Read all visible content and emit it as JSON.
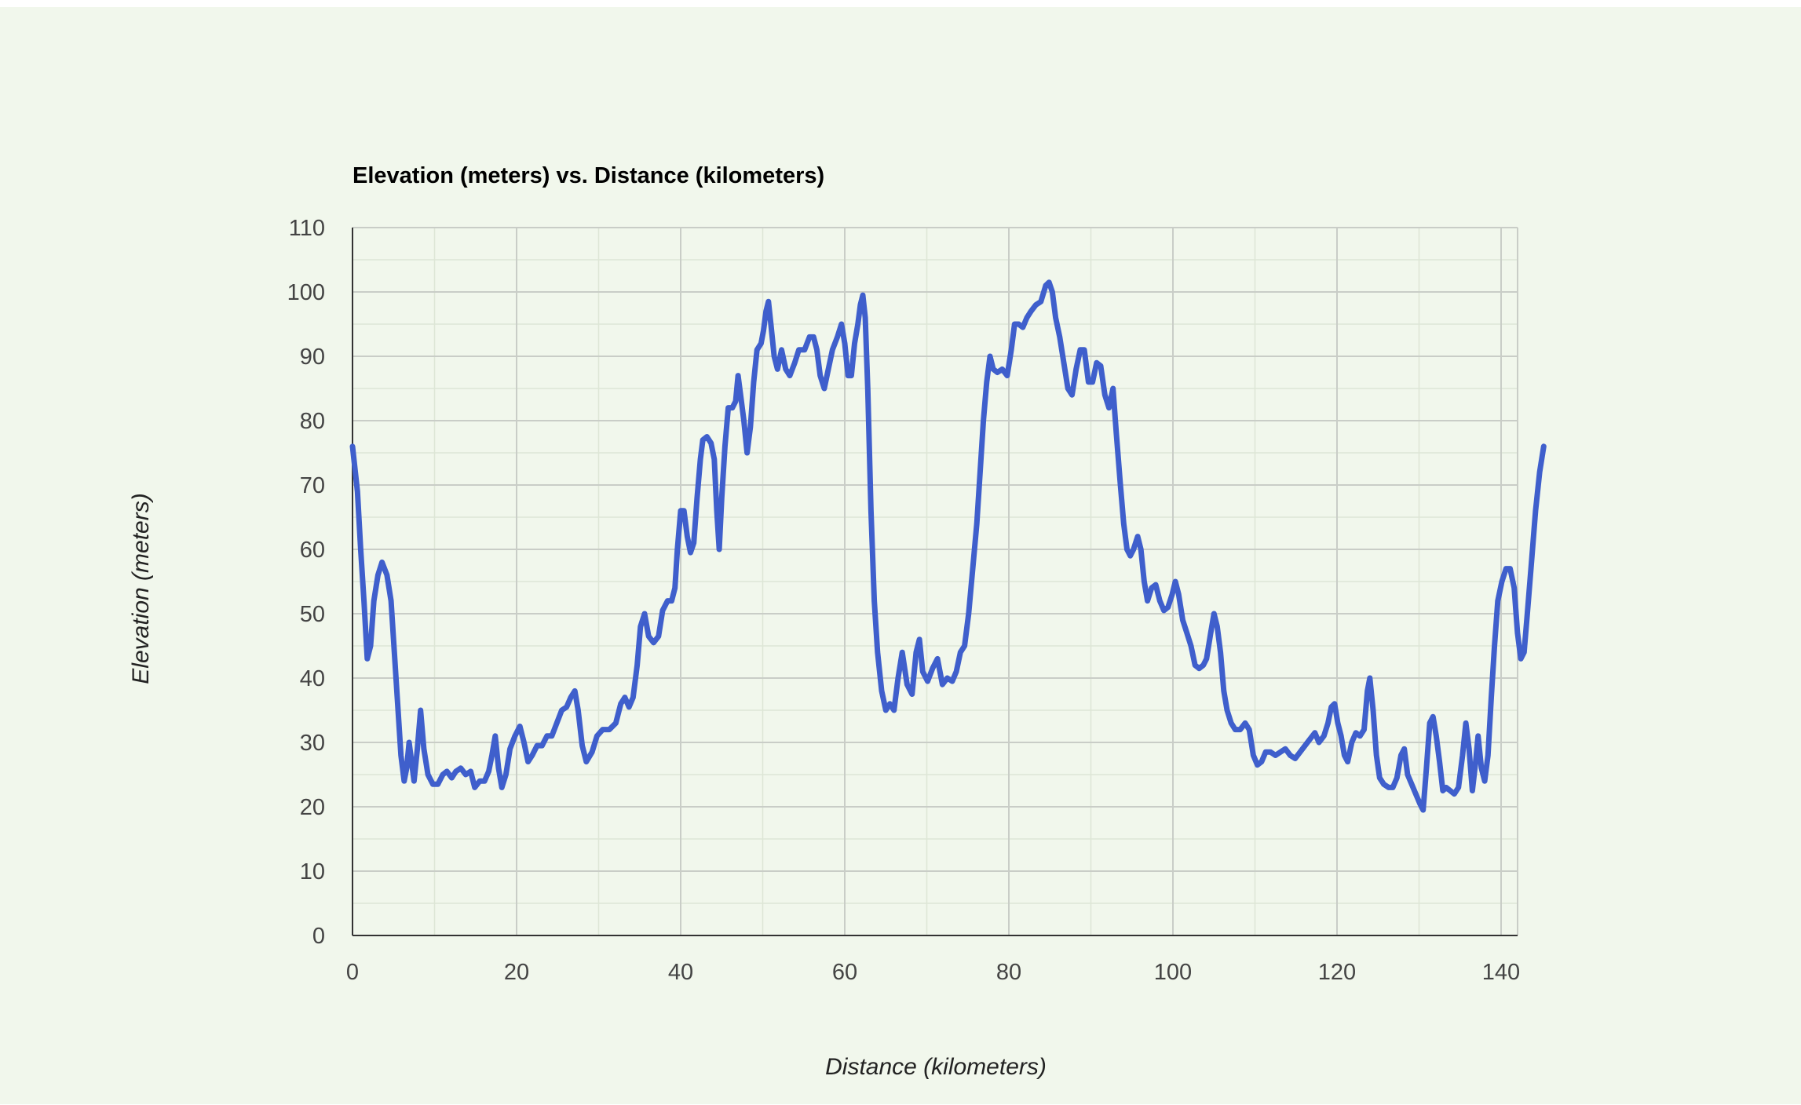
{
  "colors": {
    "background": "#f1f7ec",
    "line": "#3f5fcc",
    "major_grid": "#c9cdc7",
    "minor_grid": "#dde6d6",
    "axis": "#333333"
  },
  "chart_data": {
    "type": "line",
    "title": "Elevation (meters) vs. Distance (kilometers)",
    "xlabel": "Distance (kilometers)",
    "ylabel": "Elevation (meters)",
    "xlim": [
      0,
      141
    ],
    "ylim": [
      0,
      110
    ],
    "xticks": [
      0,
      20,
      40,
      60,
      80,
      100,
      120,
      140
    ],
    "yticks": [
      0,
      10,
      20,
      30,
      40,
      50,
      60,
      70,
      80,
      90,
      100,
      110
    ],
    "grid": true,
    "legend": "none",
    "series": [
      {
        "values": [
          [
            0,
            76
          ],
          [
            0.6,
            69
          ],
          [
            1,
            60
          ],
          [
            1.4,
            52
          ],
          [
            1.8,
            43
          ],
          [
            2.2,
            45
          ],
          [
            2.6,
            52
          ],
          [
            3.1,
            56
          ],
          [
            3.6,
            58
          ],
          [
            4.2,
            56
          ],
          [
            4.7,
            52
          ],
          [
            5.1,
            44
          ],
          [
            5.5,
            36
          ],
          [
            5.9,
            28
          ],
          [
            6.3,
            24
          ],
          [
            6.6,
            26
          ],
          [
            6.9,
            30
          ],
          [
            7.2,
            27
          ],
          [
            7.5,
            24
          ],
          [
            7.9,
            29
          ],
          [
            8.3,
            35
          ],
          [
            8.7,
            29
          ],
          [
            9.2,
            25
          ],
          [
            9.8,
            23.5
          ],
          [
            10.4,
            23.5
          ],
          [
            11,
            25
          ],
          [
            11.5,
            25.5
          ],
          [
            12.1,
            24.5
          ],
          [
            12.6,
            25.5
          ],
          [
            13.2,
            26
          ],
          [
            13.8,
            25
          ],
          [
            14.4,
            25.5
          ],
          [
            14.9,
            23
          ],
          [
            15.5,
            24
          ],
          [
            16.1,
            24
          ],
          [
            16.6,
            25.5
          ],
          [
            17,
            28
          ],
          [
            17.4,
            31
          ],
          [
            17.8,
            26
          ],
          [
            18.2,
            23
          ],
          [
            18.7,
            25
          ],
          [
            19.2,
            29
          ],
          [
            19.8,
            31
          ],
          [
            20.4,
            32.5
          ],
          [
            20.9,
            30
          ],
          [
            21.4,
            27
          ],
          [
            21.9,
            28
          ],
          [
            22.5,
            29.5
          ],
          [
            23.1,
            29.5
          ],
          [
            23.7,
            31
          ],
          [
            24.3,
            31
          ],
          [
            24.9,
            33
          ],
          [
            25.5,
            35
          ],
          [
            26.1,
            35.5
          ],
          [
            26.6,
            37
          ],
          [
            27.1,
            38
          ],
          [
            27.5,
            35
          ],
          [
            28,
            29.5
          ],
          [
            28.5,
            27
          ],
          [
            29.2,
            28.5
          ],
          [
            29.8,
            31
          ],
          [
            30.5,
            32
          ],
          [
            31.3,
            32
          ],
          [
            32.1,
            33
          ],
          [
            32.7,
            36
          ],
          [
            33.2,
            37
          ],
          [
            33.7,
            35.5
          ],
          [
            34.2,
            37
          ],
          [
            34.7,
            42
          ],
          [
            35.1,
            48
          ],
          [
            35.6,
            50
          ],
          [
            36.1,
            46.5
          ],
          [
            36.7,
            45.5
          ],
          [
            37.3,
            46.5
          ],
          [
            37.8,
            50.5
          ],
          [
            38.4,
            52
          ],
          [
            38.9,
            52
          ],
          [
            39.3,
            54
          ],
          [
            39.6,
            60
          ],
          [
            40,
            66
          ],
          [
            40.4,
            66
          ],
          [
            40.8,
            62
          ],
          [
            41.2,
            59.5
          ],
          [
            41.6,
            61
          ],
          [
            42,
            68
          ],
          [
            42.4,
            74
          ],
          [
            42.7,
            77
          ],
          [
            43.2,
            77.5
          ],
          [
            43.7,
            76.5
          ],
          [
            44.1,
            74
          ],
          [
            44.4,
            66
          ],
          [
            44.7,
            60
          ],
          [
            45,
            68
          ],
          [
            45.4,
            76
          ],
          [
            45.8,
            82
          ],
          [
            46.3,
            82
          ],
          [
            46.7,
            83
          ],
          [
            47,
            87
          ],
          [
            47.3,
            84
          ],
          [
            47.7,
            80
          ],
          [
            48.1,
            75
          ],
          [
            48.5,
            79
          ],
          [
            48.9,
            86
          ],
          [
            49.3,
            91
          ],
          [
            49.8,
            92
          ],
          [
            50.1,
            94
          ],
          [
            50.4,
            97
          ],
          [
            50.7,
            98.5
          ],
          [
            51,
            95
          ],
          [
            51.4,
            90
          ],
          [
            51.8,
            88
          ],
          [
            52.3,
            91
          ],
          [
            52.8,
            88
          ],
          [
            53.3,
            87
          ],
          [
            53.9,
            89
          ],
          [
            54.4,
            91
          ],
          [
            55.1,
            91
          ],
          [
            55.7,
            93
          ],
          [
            56.2,
            93
          ],
          [
            56.6,
            91
          ],
          [
            57,
            87
          ],
          [
            57.5,
            85
          ],
          [
            58,
            88
          ],
          [
            58.5,
            91
          ],
          [
            59.1,
            93
          ],
          [
            59.6,
            95
          ],
          [
            60,
            92
          ],
          [
            60.4,
            87
          ],
          [
            60.8,
            87
          ],
          [
            61.2,
            92
          ],
          [
            61.6,
            95
          ],
          [
            61.9,
            98
          ],
          [
            62.2,
            99.5
          ],
          [
            62.5,
            96
          ],
          [
            62.8,
            85
          ],
          [
            63.2,
            66
          ],
          [
            63.6,
            52
          ],
          [
            64,
            44
          ],
          [
            64.5,
            38
          ],
          [
            65,
            35
          ],
          [
            65.5,
            36
          ],
          [
            66,
            35
          ],
          [
            66.5,
            40
          ],
          [
            67,
            44
          ],
          [
            67.6,
            39
          ],
          [
            68.2,
            37.5
          ],
          [
            68.7,
            44
          ],
          [
            69.1,
            46
          ],
          [
            69.5,
            41
          ],
          [
            70.1,
            39.5
          ],
          [
            70.7,
            41.5
          ],
          [
            71.3,
            43
          ],
          [
            71.9,
            39
          ],
          [
            72.5,
            40
          ],
          [
            73.1,
            39.5
          ],
          [
            73.6,
            41
          ],
          [
            74.1,
            44
          ],
          [
            74.6,
            45
          ],
          [
            75.1,
            50
          ],
          [
            75.6,
            57
          ],
          [
            76.1,
            64
          ],
          [
            76.5,
            72
          ],
          [
            76.9,
            80
          ],
          [
            77.3,
            86
          ],
          [
            77.7,
            90
          ],
          [
            78.1,
            88
          ],
          [
            78.6,
            87.5
          ],
          [
            79.2,
            88
          ],
          [
            79.8,
            87
          ],
          [
            80.3,
            91
          ],
          [
            80.7,
            95
          ],
          [
            81.2,
            95
          ],
          [
            81.7,
            94.5
          ],
          [
            82.2,
            96
          ],
          [
            82.7,
            97
          ],
          [
            83.3,
            98
          ],
          [
            83.9,
            98.5
          ],
          [
            84.5,
            101
          ],
          [
            84.9,
            101.5
          ],
          [
            85.3,
            100
          ],
          [
            85.7,
            96
          ],
          [
            86.2,
            93
          ],
          [
            86.7,
            89
          ],
          [
            87.2,
            85
          ],
          [
            87.7,
            84
          ],
          [
            88.2,
            88
          ],
          [
            88.7,
            91
          ],
          [
            89.2,
            91
          ],
          [
            89.7,
            86
          ],
          [
            90.2,
            86
          ],
          [
            90.7,
            89
          ],
          [
            91.2,
            88.5
          ],
          [
            91.7,
            84
          ],
          [
            92.2,
            82
          ],
          [
            92.7,
            85
          ],
          [
            93.1,
            78
          ],
          [
            93.6,
            70
          ],
          [
            94,
            64
          ],
          [
            94.4,
            60
          ],
          [
            94.8,
            59
          ],
          [
            95.2,
            60
          ],
          [
            95.7,
            62
          ],
          [
            96.1,
            60
          ],
          [
            96.5,
            55
          ],
          [
            96.9,
            52
          ],
          [
            97.4,
            54
          ],
          [
            97.9,
            54.5
          ],
          [
            98.4,
            52
          ],
          [
            98.9,
            50.5
          ],
          [
            99.4,
            51
          ],
          [
            99.9,
            53
          ],
          [
            100.3,
            55
          ],
          [
            100.7,
            53
          ],
          [
            101.2,
            49
          ],
          [
            101.7,
            47
          ],
          [
            102.2,
            45
          ],
          [
            102.7,
            42
          ],
          [
            103.2,
            41.5
          ],
          [
            103.7,
            42
          ],
          [
            104.1,
            43
          ],
          [
            104.6,
            47
          ],
          [
            105,
            50
          ],
          [
            105.4,
            48
          ],
          [
            105.8,
            44
          ],
          [
            106.2,
            38
          ],
          [
            106.6,
            35
          ],
          [
            107.1,
            33
          ],
          [
            107.6,
            32
          ],
          [
            108.2,
            32
          ],
          [
            108.8,
            33
          ],
          [
            109.3,
            32
          ],
          [
            109.8,
            28
          ],
          [
            110.3,
            26.5
          ],
          [
            110.8,
            27
          ],
          [
            111.3,
            28.5
          ],
          [
            111.9,
            28.5
          ],
          [
            112.5,
            28
          ],
          [
            113.1,
            28.5
          ],
          [
            113.7,
            29
          ],
          [
            114.3,
            28
          ],
          [
            114.9,
            27.5
          ],
          [
            115.5,
            28.5
          ],
          [
            116.1,
            29.5
          ],
          [
            116.7,
            30.5
          ],
          [
            117.3,
            31.5
          ],
          [
            117.8,
            30
          ],
          [
            118.4,
            31
          ],
          [
            118.9,
            33
          ],
          [
            119.3,
            35.5
          ],
          [
            119.7,
            36
          ],
          [
            120.1,
            33
          ],
          [
            120.5,
            31
          ],
          [
            120.9,
            28
          ],
          [
            121.3,
            27
          ],
          [
            121.8,
            30
          ],
          [
            122.3,
            31.5
          ],
          [
            122.8,
            31
          ],
          [
            123.3,
            32
          ],
          [
            123.7,
            38
          ],
          [
            124,
            40
          ],
          [
            124.4,
            35
          ],
          [
            124.8,
            28
          ],
          [
            125.2,
            24.5
          ],
          [
            125.7,
            23.5
          ],
          [
            126.3,
            23
          ],
          [
            126.8,
            23
          ],
          [
            127.3,
            24.5
          ],
          [
            127.8,
            28
          ],
          [
            128.2,
            29
          ],
          [
            128.6,
            25
          ],
          [
            129.1,
            23.5
          ],
          [
            129.6,
            22
          ],
          [
            130.1,
            20.5
          ],
          [
            130.5,
            19.5
          ],
          [
            130.9,
            26
          ],
          [
            131.3,
            33
          ],
          [
            131.7,
            34
          ],
          [
            132.1,
            31
          ],
          [
            132.5,
            27
          ],
          [
            132.9,
            22.5
          ],
          [
            133.3,
            23
          ],
          [
            133.8,
            22.5
          ],
          [
            134.3,
            22
          ],
          [
            134.8,
            23
          ],
          [
            135.3,
            28
          ],
          [
            135.7,
            33
          ],
          [
            136.1,
            29
          ],
          [
            136.5,
            22.5
          ],
          [
            136.9,
            27
          ],
          [
            137.2,
            31
          ],
          [
            137.6,
            26
          ],
          [
            138,
            24
          ],
          [
            138.4,
            28
          ],
          [
            138.8,
            37
          ],
          [
            139.2,
            45
          ],
          [
            139.6,
            52
          ],
          [
            140.1,
            55
          ],
          [
            140.6,
            57
          ],
          [
            141.1,
            57
          ],
          [
            141.6,
            54
          ],
          [
            142,
            47
          ],
          [
            142.4,
            43
          ],
          [
            142.8,
            44
          ],
          [
            143.2,
            50
          ],
          [
            143.7,
            58
          ],
          [
            144.2,
            66
          ],
          [
            144.7,
            72
          ],
          [
            145.2,
            76
          ]
        ]
      }
    ]
  }
}
